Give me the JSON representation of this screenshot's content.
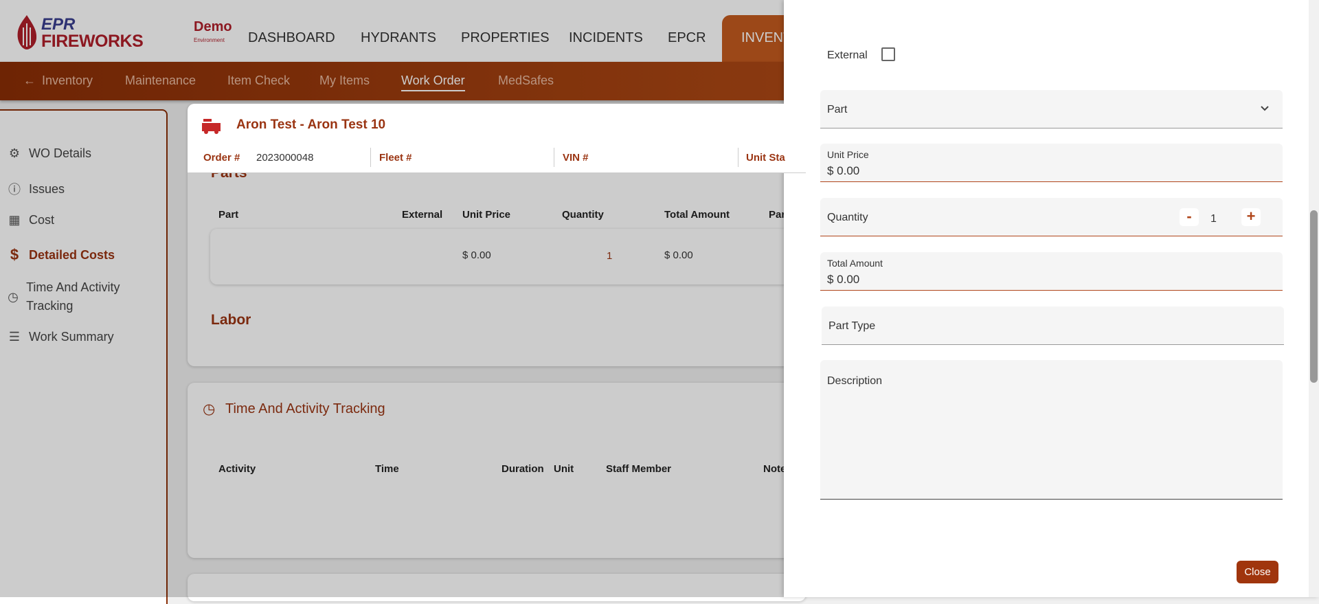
{
  "brand": {
    "line1": "EPR",
    "line2": "FIREWORKS",
    "env_title": "Demo",
    "env_sub": "Environment"
  },
  "nav": [
    "DASHBOARD",
    "HYDRANTS",
    "PROPERTIES",
    "INCIDENTS",
    "EPCR",
    "INVENTORY"
  ],
  "subnav": {
    "back": "Inventory",
    "items": [
      "Maintenance",
      "Item Check",
      "My Items",
      "Work Order",
      "MedSafes"
    ],
    "active": "Work Order"
  },
  "sidebar": [
    {
      "label": "WO Details",
      "icon": "gear-wrench-icon"
    },
    {
      "label": "Issues",
      "icon": "info-icon"
    },
    {
      "label": "Cost",
      "icon": "calculator-icon"
    },
    {
      "label": "Detailed Costs",
      "icon": "dollar-icon",
      "active": true
    },
    {
      "label": "Time And Activity Tracking",
      "icon": "clock-icon"
    },
    {
      "label": "Work Summary",
      "icon": "list-icon"
    }
  ],
  "work_order": {
    "title": "Aron Test - Aron Test 10",
    "order_label": "Order #",
    "order_value": "2023000048",
    "fleet_label": "Fleet #",
    "vin_label": "VIN #",
    "unit_status_label": "Unit Sta"
  },
  "parts": {
    "title": "Parts",
    "headers": [
      "Part",
      "External",
      "Unit Price",
      "Quantity",
      "Total Amount",
      "Par"
    ],
    "row": {
      "unit_price": "$  0.00",
      "quantity": "1",
      "total": "$  0.00"
    }
  },
  "labor": {
    "title": "Labor"
  },
  "time_tracking": {
    "title": "Time And Activity Tracking",
    "headers": [
      "Activity",
      "Time",
      "Duration",
      "Unit",
      "Staff Member",
      "Note"
    ]
  },
  "drawer": {
    "external_label": "External",
    "external_checked": false,
    "part_label": "Part",
    "unit_price_label": "Unit Price",
    "unit_price_value": "$ 0.00",
    "quantity_label": "Quantity",
    "quantity_value": "1",
    "minus": "-",
    "plus": "+",
    "total_label": "Total Amount",
    "total_value": "$ 0.00",
    "part_type_label": "Part Type",
    "description_label": "Description",
    "close": "Close"
  },
  "colors": {
    "accent": "#9a3412",
    "brand_red": "#b01e2a",
    "button": "#a0350d"
  }
}
